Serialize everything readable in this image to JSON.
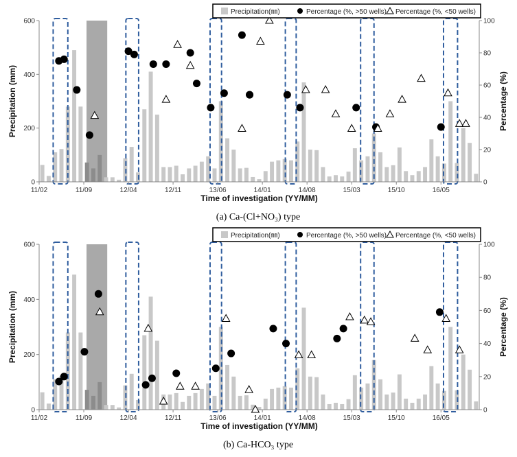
{
  "chart_data": [
    {
      "type": "bar+scatter",
      "caption": "(a) Ca-(Cl+NO₃) type",
      "xlabel": "Time of investigation (YY/MM)",
      "ylabel_left": "Precipitation (mm)",
      "ylabel_right": "Percentage (%)",
      "ylim_left": [
        0,
        600
      ],
      "ylim_right": [
        0,
        100
      ],
      "yticks_left": [
        "0",
        "200",
        "400",
        "600"
      ],
      "yticks_right": [
        "0",
        "20",
        "40",
        "60",
        "80",
        "100"
      ],
      "xticks": [
        "11/02",
        "11/09",
        "12/04",
        "12/11",
        "13/06",
        "14/01",
        "14/08",
        "15/03",
        "15/10",
        "16/05"
      ],
      "legend": [
        "Precipitation(㎜)",
        "Percentage (%, >50 wells)",
        "Percentage (%, <50 wells)"
      ],
      "shaded_period": [
        "11/09",
        "11/11"
      ],
      "precipitation": [
        63,
        22,
        110,
        122,
        280,
        490,
        280,
        72,
        50,
        100,
        17,
        17,
        8,
        88,
        130,
        35,
        270,
        410,
        250,
        55,
        55,
        60,
        28,
        50,
        60,
        75,
        95,
        50,
        300,
        162,
        120,
        50,
        52,
        18,
        10,
        40,
        75,
        80,
        85,
        80,
        150,
        370,
        120,
        118,
        55,
        20,
        25,
        20,
        38,
        125,
        80,
        95,
        180,
        110,
        55,
        62,
        128,
        40,
        25,
        40,
        55,
        158,
        95,
        68,
        300,
        70,
        200,
        145,
        30
      ],
      "series": [
        {
          "name": "Percentage (%, >50 wells)",
          "marker": "circle",
          "x": [
            2.6,
            3.4,
            5.4,
            7.4,
            13.5,
            14.4,
            17.4,
            19.4,
            23.2,
            24.2,
            26.4,
            28.5,
            31.3,
            32.5,
            32.5,
            38.4,
            40.4,
            49.2,
            52.3,
            62.5
          ],
          "y": [
            75,
            76,
            57,
            29,
            81,
            79,
            73,
            73,
            80,
            61,
            46,
            55,
            91,
            54,
            54,
            54,
            46,
            46,
            34,
            34
          ],
          "y_note": "exact marker values"
        },
        {
          "name": "Percentage (%, <50 wells)",
          "marker": "triangle",
          "x": [
            8.2,
            19.4,
            21.2,
            23.2,
            31.3,
            34.2,
            35.6,
            41.3,
            44.4,
            46.0,
            48.5,
            52.6,
            54.5,
            56.4,
            59.4,
            63.6,
            65.4,
            66.4
          ],
          "y": [
            41,
            51,
            85,
            72,
            33,
            87,
            100,
            57,
            57,
            42,
            33,
            33,
            42,
            51,
            64,
            55,
            36,
            36
          ]
        }
      ]
    },
    {
      "type": "bar+scatter",
      "caption": "(b) Ca-HCO₃ type",
      "xlabel": "Time of investigation (YY/MM)",
      "ylabel_left": "Precipitation (mm)",
      "ylabel_right": "Percentage (%)",
      "ylim_left": [
        0,
        600
      ],
      "ylim_right": [
        0,
        100
      ],
      "yticks_left": [
        "0",
        "200",
        "400",
        "600"
      ],
      "yticks_right": [
        "0",
        "20",
        "40",
        "60",
        "80",
        "100"
      ],
      "xticks": [
        "11/02",
        "11/09",
        "12/04",
        "12/11",
        "13/06",
        "14/01",
        "14/08",
        "15/03",
        "15/10",
        "16/05"
      ],
      "legend": [
        "Precipitation(㎜)",
        "Percentage (%, >50 wells)",
        "Percentage (%, <50 wells)"
      ],
      "shaded_period": [
        "11/09",
        "11/11"
      ],
      "precipitation": [
        63,
        22,
        110,
        122,
        280,
        490,
        280,
        72,
        50,
        100,
        17,
        17,
        8,
        88,
        130,
        35,
        270,
        410,
        250,
        55,
        55,
        60,
        28,
        50,
        60,
        75,
        95,
        50,
        300,
        162,
        120,
        50,
        52,
        18,
        10,
        40,
        75,
        80,
        85,
        80,
        150,
        370,
        120,
        118,
        55,
        20,
        25,
        20,
        38,
        125,
        80,
        95,
        180,
        110,
        55,
        62,
        128,
        40,
        25,
        40,
        55,
        158,
        95,
        68,
        300,
        70,
        200,
        145,
        30
      ],
      "series": [
        {
          "name": "Percentage (%, >50 wells)",
          "marker": "circle",
          "x": [
            2.6,
            3.4,
            6.6,
            8.8,
            16.2,
            17.2,
            21.0,
            27.2,
            29.6,
            36.2,
            38.2,
            46.2,
            47.2,
            62.3
          ],
          "y": [
            17,
            20,
            35,
            70,
            15,
            19,
            22,
            25,
            34,
            49,
            40,
            43,
            49,
            59
          ]
        },
        {
          "name": "Percentage (%, <50 wells)",
          "marker": "triangle",
          "x": [
            9.0,
            16.6,
            19.0,
            21.6,
            24.0,
            28.8,
            32.4,
            33.4,
            40.2,
            42.2,
            48.2,
            50.5,
            51.5,
            58.4,
            60.4,
            63.3,
            65.4
          ],
          "y": [
            59,
            49,
            5,
            14,
            14,
            55,
            12,
            0,
            33,
            33,
            56,
            54,
            53,
            43,
            36,
            55,
            36
          ]
        }
      ]
    }
  ]
}
